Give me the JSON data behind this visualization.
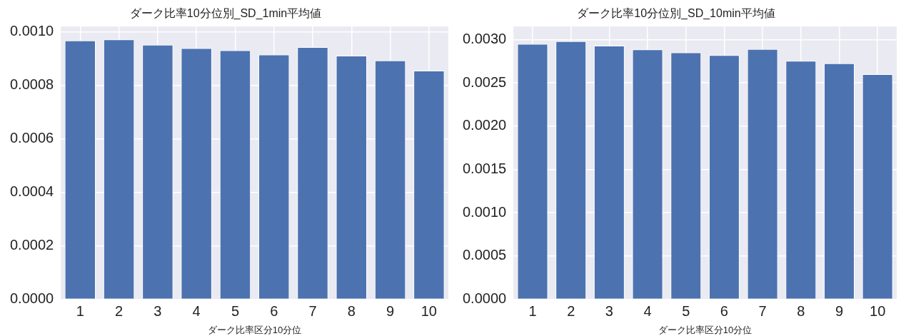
{
  "chart_data": [
    {
      "type": "bar",
      "title": "ダーク比率10分位別_SD_1min平均値",
      "xlabel": "ダーク比率区分10分位",
      "categories": [
        "1",
        "2",
        "3",
        "4",
        "5",
        "6",
        "7",
        "8",
        "9",
        "10"
      ],
      "color": "#4c72b0",
      "values": [
        0.000968,
        0.000972,
        0.000952,
        0.000939,
        0.000931,
        0.000915,
        0.000943,
        0.000911,
        0.000893,
        0.000855
      ],
      "ylim": [
        0,
        0.00102
      ],
      "yticks": [
        {
          "value": 0,
          "label": "0.0000"
        },
        {
          "value": 0.0002,
          "label": "0.0002"
        },
        {
          "value": 0.0004,
          "label": "0.0004"
        },
        {
          "value": 0.0006,
          "label": "0.0006"
        },
        {
          "value": 0.0008,
          "label": "0.0008"
        },
        {
          "value": 0.001,
          "label": "0.0010"
        }
      ],
      "grid": true
    },
    {
      "type": "bar",
      "title": "ダーク比率10分位別_SD_10min平均値",
      "xlabel": "ダーク比率区分10分位",
      "categories": [
        "1",
        "2",
        "3",
        "4",
        "5",
        "6",
        "7",
        "8",
        "9",
        "10"
      ],
      "color": "#4c72b0",
      "values": [
        0.00295,
        0.00298,
        0.00293,
        0.002885,
        0.00285,
        0.00282,
        0.00289,
        0.002755,
        0.002725,
        0.0026
      ],
      "ylim": [
        0,
        0.00315
      ],
      "yticks": [
        {
          "value": 0,
          "label": "0.0000"
        },
        {
          "value": 0.0005,
          "label": "0.0005"
        },
        {
          "value": 0.001,
          "label": "0.0010"
        },
        {
          "value": 0.0015,
          "label": "0.0015"
        },
        {
          "value": 0.002,
          "label": "0.0020"
        },
        {
          "value": 0.0025,
          "label": "0.0025"
        },
        {
          "value": 0.003,
          "label": "0.0030"
        }
      ],
      "grid": true
    }
  ]
}
